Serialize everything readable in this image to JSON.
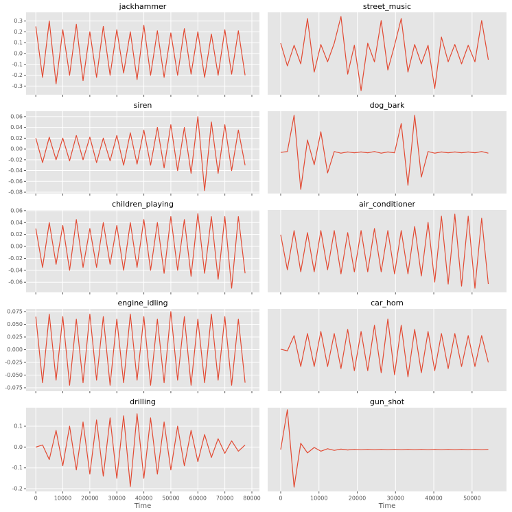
{
  "chart_data": [
    {
      "type": "line",
      "title": "jackhammer",
      "color": "#e24a33",
      "grid": true,
      "show_xtick_labels": false,
      "xlim": [
        -3600,
        82800
      ],
      "xticks": [
        0,
        10000,
        20000,
        30000,
        40000,
        50000,
        60000,
        70000,
        80000
      ],
      "ylim": [
        -0.38,
        0.38
      ],
      "yticks": [
        -0.3,
        -0.2,
        -0.1,
        {
          "value": 0,
          "label": "0.0"
        },
        0.1,
        0.2,
        0.3
      ],
      "x": [
        0,
        2500,
        5000,
        7500,
        10000,
        12500,
        15000,
        17500,
        20000,
        22500,
        25000,
        27500,
        30000,
        32500,
        35000,
        37500,
        40000,
        42500,
        45000,
        47500,
        50000,
        52500,
        55000,
        57500,
        60000,
        62500,
        65000,
        67500,
        70000,
        72500,
        75000,
        77500
      ],
      "values": [
        0.25,
        -0.22,
        0.3,
        -0.28,
        0.22,
        -0.2,
        0.27,
        -0.25,
        0.2,
        -0.22,
        0.25,
        -0.2,
        0.22,
        -0.18,
        0.2,
        -0.24,
        0.26,
        -0.2,
        0.21,
        -0.22,
        0.19,
        -0.2,
        0.23,
        -0.19,
        0.2,
        -0.22,
        0.18,
        -0.2,
        0.22,
        -0.19,
        0.21,
        -0.2
      ]
    },
    {
      "type": "line",
      "title": "street_music",
      "color": "#e24a33",
      "grid": true,
      "show_xtick_labels": false,
      "xlim": [
        -3400,
        59000
      ],
      "xticks": [
        0,
        10000,
        20000,
        30000,
        40000,
        50000
      ],
      "ylim": [
        -1,
        1
      ],
      "x": [
        0,
        1750,
        3500,
        5250,
        7000,
        8750,
        10500,
        12250,
        14000,
        15750,
        17500,
        19250,
        21000,
        22750,
        24500,
        26250,
        28000,
        29750,
        31500,
        33250,
        35000,
        36750,
        38500,
        40250,
        42000,
        43750,
        45500,
        47250,
        49000,
        50750,
        52500,
        54250
      ],
      "values": [
        0.25,
        -0.3,
        0.2,
        -0.25,
        0.85,
        -0.45,
        0.22,
        -0.2,
        0.25,
        0.9,
        -0.5,
        0.2,
        -0.9,
        0.25,
        -0.2,
        0.8,
        -0.4,
        0.2,
        0.85,
        -0.45,
        0.22,
        -0.25,
        0.2,
        -0.85,
        0.4,
        -0.2,
        0.22,
        -0.25,
        0.2,
        -0.2,
        0.8,
        -0.15
      ]
    },
    {
      "type": "line",
      "title": "siren",
      "color": "#e24a33",
      "grid": true,
      "show_xtick_labels": false,
      "xlim": [
        -3600,
        82800
      ],
      "xticks": [
        0,
        10000,
        20000,
        30000,
        40000,
        50000,
        60000,
        70000,
        80000
      ],
      "ylim": [
        -0.0825,
        0.07
      ],
      "yticks": [
        -0.08,
        -0.06,
        -0.04,
        -0.02,
        {
          "value": 0,
          "label": "0.00"
        },
        0.02,
        0.04,
        0.06
      ],
      "x": [
        0,
        2500,
        5000,
        7500,
        10000,
        12500,
        15000,
        17500,
        20000,
        22500,
        25000,
        27500,
        30000,
        32500,
        35000,
        37500,
        40000,
        42500,
        45000,
        47500,
        50000,
        52500,
        55000,
        57500,
        60000,
        62500,
        65000,
        67500,
        70000,
        72500,
        75000,
        77500
      ],
      "values": [
        0.02,
        -0.025,
        0.022,
        -0.02,
        0.02,
        -0.022,
        0.025,
        -0.02,
        0.022,
        -0.025,
        0.02,
        -0.022,
        0.025,
        -0.03,
        0.03,
        -0.028,
        0.035,
        -0.03,
        0.04,
        -0.035,
        0.045,
        -0.04,
        0.04,
        -0.045,
        0.06,
        -0.077,
        0.05,
        -0.045,
        0.045,
        -0.04,
        0.035,
        -0.03
      ]
    },
    {
      "type": "line",
      "title": "dog_bark",
      "color": "#e24a33",
      "grid": true,
      "show_xtick_labels": false,
      "xlim": [
        -3400,
        59000
      ],
      "xticks": [
        0,
        10000,
        20000,
        30000,
        40000,
        50000
      ],
      "ylim": [
        -1,
        1
      ],
      "x": [
        0,
        1750,
        3500,
        5250,
        7000,
        8750,
        10500,
        12250,
        14000,
        15750,
        17500,
        19250,
        21000,
        22750,
        24500,
        26250,
        28000,
        29750,
        31500,
        33250,
        35000,
        36750,
        38500,
        40250,
        42000,
        43750,
        45500,
        47250,
        49000,
        50750,
        52500,
        54250
      ],
      "values": [
        0,
        0.02,
        0.9,
        -0.9,
        0.3,
        -0.3,
        0.5,
        -0.5,
        0.02,
        -0.02,
        0.01,
        -0.01,
        0.01,
        -0.01,
        0.02,
        -0.02,
        0.01,
        -0.01,
        0.7,
        -0.8,
        0.9,
        -0.6,
        0.02,
        -0.02,
        0.01,
        -0.01,
        0.01,
        -0.01,
        0.01,
        -0.01,
        0.02,
        -0.02
      ]
    },
    {
      "type": "line",
      "title": "children_playing",
      "color": "#e24a33",
      "grid": true,
      "show_xtick_labels": false,
      "xlim": [
        -3600,
        82800
      ],
      "xticks": [
        0,
        10000,
        20000,
        30000,
        40000,
        50000,
        60000,
        70000,
        80000
      ],
      "ylim": [
        -0.077,
        0.061
      ],
      "yticks": [
        -0.06,
        -0.04,
        -0.02,
        {
          "value": 0,
          "label": "0.00"
        },
        0.02,
        0.04,
        0.06
      ],
      "x": [
        0,
        2500,
        5000,
        7500,
        10000,
        12500,
        15000,
        17500,
        20000,
        22500,
        25000,
        27500,
        30000,
        32500,
        35000,
        37500,
        40000,
        42500,
        45000,
        47500,
        50000,
        52500,
        55000,
        57500,
        60000,
        62500,
        65000,
        67500,
        70000,
        72500,
        75000,
        77500
      ],
      "values": [
        0.03,
        -0.035,
        0.04,
        -0.03,
        0.035,
        -0.04,
        0.045,
        -0.035,
        0.03,
        -0.035,
        0.04,
        -0.03,
        0.035,
        -0.04,
        0.04,
        -0.035,
        0.045,
        -0.04,
        0.04,
        -0.045,
        0.05,
        -0.04,
        0.045,
        -0.05,
        0.055,
        -0.045,
        0.05,
        -0.055,
        0.05,
        -0.07,
        0.05,
        -0.045
      ]
    },
    {
      "type": "line",
      "title": "air_conditioner",
      "color": "#e24a33",
      "grid": true,
      "show_xtick_labels": false,
      "xlim": [
        -3400,
        59000
      ],
      "xticks": [
        0,
        10000,
        20000,
        30000,
        40000,
        50000
      ],
      "ylim": [
        -1,
        1
      ],
      "x": [
        0,
        1750,
        3500,
        5250,
        7000,
        8750,
        10500,
        12250,
        14000,
        15750,
        17500,
        19250,
        21000,
        22750,
        24500,
        26250,
        28000,
        29750,
        31500,
        33250,
        35000,
        36750,
        38500,
        40250,
        42000,
        43750,
        45500,
        47250,
        49000,
        50750,
        52500,
        54250
      ],
      "values": [
        0.4,
        -0.45,
        0.5,
        -0.5,
        0.45,
        -0.5,
        0.5,
        -0.45,
        0.5,
        -0.55,
        0.45,
        -0.5,
        0.5,
        -0.5,
        0.55,
        -0.5,
        0.5,
        -0.55,
        0.5,
        -0.55,
        0.6,
        -0.6,
        0.7,
        -0.75,
        0.85,
        -0.8,
        0.9,
        -0.85,
        0.85,
        -0.9,
        0.8,
        -0.8
      ]
    },
    {
      "type": "line",
      "title": "engine_idling",
      "color": "#e24a33",
      "grid": true,
      "show_xtick_labels": false,
      "xlim": [
        -3600,
        82800
      ],
      "xticks": [
        0,
        10000,
        20000,
        30000,
        40000,
        50000,
        60000,
        70000,
        80000
      ],
      "ylim": [
        -0.0818,
        0.0804
      ],
      "yticks": [
        {
          "value": -0.075,
          "label": "-0.075"
        },
        {
          "value": -0.05,
          "label": "-0.050"
        },
        {
          "value": -0.025,
          "label": "-0.025"
        },
        {
          "value": 0,
          "label": "0.000"
        },
        {
          "value": 0.025,
          "label": "0.025"
        },
        {
          "value": 0.05,
          "label": "0.050"
        },
        {
          "value": 0.075,
          "label": "0.075"
        }
      ],
      "x": [
        0,
        2500,
        5000,
        7500,
        10000,
        12500,
        15000,
        17500,
        20000,
        22500,
        25000,
        27500,
        30000,
        32500,
        35000,
        37500,
        40000,
        42500,
        45000,
        47500,
        50000,
        52500,
        55000,
        57500,
        60000,
        62500,
        65000,
        67500,
        70000,
        72500,
        75000,
        77500
      ],
      "values": [
        0.065,
        -0.065,
        0.07,
        -0.06,
        0.065,
        -0.07,
        0.06,
        -0.065,
        0.07,
        -0.06,
        0.065,
        -0.07,
        0.06,
        -0.065,
        0.07,
        -0.06,
        0.065,
        -0.07,
        0.06,
        -0.065,
        0.075,
        -0.06,
        0.065,
        -0.07,
        0.06,
        -0.065,
        0.07,
        -0.06,
        0.065,
        -0.07,
        0.06,
        -0.065
      ]
    },
    {
      "type": "line",
      "title": "car_horn",
      "color": "#e24a33",
      "grid": true,
      "show_xtick_labels": false,
      "xlim": [
        -3400,
        59000
      ],
      "xticks": [
        0,
        10000,
        20000,
        30000,
        40000,
        50000
      ],
      "ylim": [
        -1,
        1
      ],
      "x": [
        0,
        1750,
        3500,
        5250,
        7000,
        8750,
        10500,
        12250,
        14000,
        15750,
        17500,
        19250,
        21000,
        22750,
        24500,
        26250,
        28000,
        29750,
        31500,
        33250,
        35000,
        36750,
        38500,
        40250,
        42000,
        43750,
        45500,
        47250,
        49000,
        50750,
        52500,
        54250
      ],
      "values": [
        0.02,
        -0.02,
        0.35,
        -0.4,
        0.4,
        -0.4,
        0.45,
        -0.4,
        0.4,
        -0.45,
        0.5,
        -0.5,
        0.45,
        -0.5,
        0.6,
        -0.55,
        0.75,
        -0.6,
        0.6,
        -0.65,
        0.5,
        -0.55,
        0.45,
        -0.5,
        0.4,
        -0.45,
        0.4,
        -0.4,
        0.35,
        -0.4,
        0.35,
        -0.3
      ]
    },
    {
      "type": "line",
      "title": "drilling",
      "color": "#e24a33",
      "grid": true,
      "show_xtick_labels": true,
      "xlabel": "Time",
      "xlim": [
        -3600,
        82800
      ],
      "xticks": [
        0,
        10000,
        20000,
        30000,
        40000,
        50000,
        60000,
        70000,
        80000
      ],
      "ylim": [
        -0.213,
        0.189
      ],
      "yticks": [
        -0.2,
        -0.1,
        {
          "value": 0,
          "label": "0.0"
        },
        0.1
      ],
      "x": [
        0,
        2500,
        5000,
        7500,
        10000,
        12500,
        15000,
        17500,
        20000,
        22500,
        25000,
        27500,
        30000,
        32500,
        35000,
        37500,
        40000,
        42500,
        45000,
        47500,
        50000,
        52500,
        55000,
        57500,
        60000,
        62500,
        65000,
        67500,
        70000,
        72500,
        75000,
        77500
      ],
      "values": [
        0,
        0.01,
        -0.06,
        0.08,
        -0.09,
        0.1,
        -0.11,
        0.12,
        -0.13,
        0.13,
        -0.14,
        0.14,
        -0.15,
        0.15,
        -0.19,
        0.16,
        -0.15,
        0.14,
        -0.13,
        0.12,
        -0.11,
        0.1,
        -0.09,
        0.08,
        -0.07,
        0.06,
        -0.05,
        0.04,
        -0.03,
        0.03,
        -0.02,
        0.01
      ]
    },
    {
      "type": "line",
      "title": "gun_shot",
      "color": "#e24a33",
      "grid": true,
      "show_xtick_labels": true,
      "xlabel": "Time",
      "xlim": [
        -3400,
        59000
      ],
      "xticks": [
        0,
        10000,
        20000,
        30000,
        40000,
        50000
      ],
      "ylim": [
        -1,
        1
      ],
      "x": [
        0,
        1750,
        3500,
        5250,
        7000,
        8750,
        10500,
        12250,
        14000,
        15750,
        17500,
        19250,
        21000,
        22750,
        24500,
        26250,
        28000,
        29750,
        31500,
        33250,
        35000,
        36750,
        38500,
        40250,
        42000,
        43750,
        45500,
        47250,
        49000,
        50750,
        52500,
        54250
      ],
      "values": [
        0,
        0.95,
        -0.9,
        0.15,
        -0.08,
        0.05,
        -0.04,
        0.02,
        -0.02,
        0.01,
        -0.01,
        0.005,
        -0.005,
        0.005,
        -0.005,
        0.005,
        -0.005,
        0.005,
        -0.005,
        0.005,
        -0.005,
        0.005,
        -0.005,
        0.005,
        -0.005,
        0.005,
        -0.005,
        0.005,
        -0.005,
        0.005,
        -0.005,
        0.005
      ]
    }
  ]
}
